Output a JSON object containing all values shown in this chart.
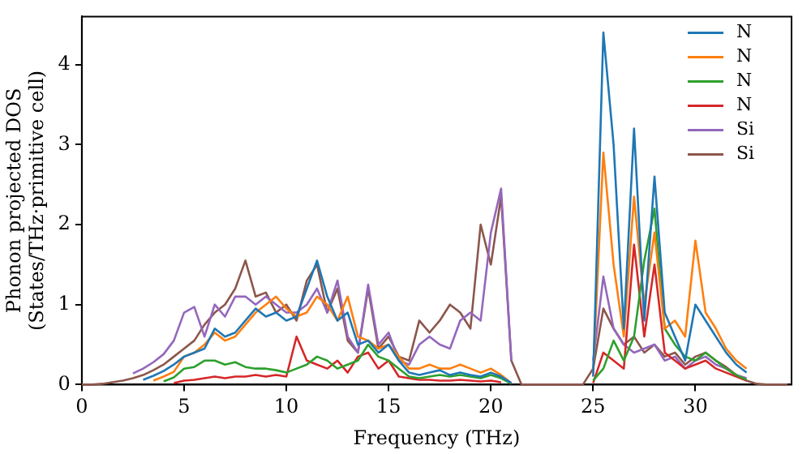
{
  "chart_data": {
    "type": "line",
    "xlabel": "Frequency (THz)",
    "ylabel": "Phonon projected DOS\n(States/THz·primitive cell)",
    "x": [
      0,
      0.5,
      1,
      1.5,
      2,
      2.5,
      3,
      3.5,
      4,
      4.5,
      5,
      5.5,
      6,
      6.5,
      7,
      7.5,
      8,
      8.5,
      9,
      9.5,
      10,
      10.5,
      11,
      11.5,
      12,
      12.5,
      13,
      13.5,
      14,
      14.5,
      15,
      15.5,
      16,
      16.5,
      17,
      17.5,
      18,
      18.5,
      19,
      19.5,
      20,
      20.5,
      21,
      21.5,
      22,
      22.5,
      23,
      23.5,
      24,
      24.5,
      25,
      25.5,
      26,
      26.5,
      27,
      27.5,
      28,
      28.5,
      29,
      29.5,
      30,
      30.5,
      31,
      31.5,
      32,
      32.5,
      33,
      33.5,
      34,
      34.5
    ],
    "xlim": [
      0,
      34.7
    ],
    "xticks": [
      0,
      5,
      10,
      15,
      20,
      25,
      30
    ],
    "ylim": [
      0,
      4.6
    ],
    "yticks": [
      0,
      1,
      2,
      3,
      4
    ],
    "grid": false,
    "legend": "top right",
    "marker": "none",
    "line_style": "solid",
    "series": [
      {
        "name": "N",
        "color": "#1f77b4",
        "values": [
          null,
          null,
          null,
          null,
          null,
          null,
          0.06,
          0.11,
          0.17,
          0.25,
          0.35,
          0.4,
          0.45,
          0.7,
          0.6,
          0.65,
          0.8,
          0.95,
          0.85,
          0.9,
          0.8,
          0.85,
          1.2,
          1.55,
          1.1,
          0.8,
          0.9,
          0.5,
          0.55,
          0.4,
          0.5,
          0.3,
          0.15,
          0.12,
          0.15,
          0.18,
          0.12,
          0.15,
          0.12,
          0.1,
          0.15,
          0.1,
          0.02,
          null,
          null,
          null,
          null,
          null,
          null,
          null,
          0.1,
          4.4,
          3.0,
          0.7,
          3.2,
          0.8,
          2.6,
          0.9,
          0.6,
          0.3,
          1.0,
          0.8,
          0.6,
          0.4,
          0.25,
          0.15,
          null,
          null,
          null,
          null
        ]
      },
      {
        "name": "N",
        "color": "#ff7f0e",
        "values": [
          null,
          null,
          null,
          null,
          null,
          null,
          null,
          0.05,
          0.1,
          0.16,
          0.35,
          0.4,
          0.5,
          0.65,
          0.55,
          0.6,
          0.75,
          0.9,
          1.0,
          1.1,
          0.95,
          0.85,
          0.9,
          1.1,
          1.0,
          0.8,
          1.1,
          0.6,
          0.55,
          0.45,
          0.5,
          0.35,
          0.2,
          0.2,
          0.25,
          0.2,
          0.2,
          0.25,
          0.2,
          0.15,
          0.2,
          0.12,
          0.02,
          null,
          null,
          null,
          null,
          null,
          null,
          null,
          0.15,
          2.9,
          1.5,
          0.6,
          2.35,
          1.0,
          1.9,
          0.7,
          0.8,
          0.6,
          1.8,
          0.9,
          0.7,
          0.45,
          0.3,
          0.2,
          null,
          null,
          null,
          null
        ]
      },
      {
        "name": "N",
        "color": "#2ca02c",
        "values": [
          null,
          null,
          null,
          null,
          null,
          null,
          null,
          null,
          0.04,
          0.09,
          0.2,
          0.22,
          0.3,
          0.3,
          0.25,
          0.28,
          0.22,
          0.2,
          0.2,
          0.18,
          0.15,
          0.2,
          0.25,
          0.35,
          0.3,
          0.2,
          0.25,
          0.3,
          0.5,
          0.35,
          0.3,
          0.2,
          0.1,
          0.08,
          0.1,
          0.12,
          0.1,
          0.12,
          0.1,
          0.08,
          0.12,
          0.08,
          0.01,
          null,
          null,
          null,
          null,
          null,
          null,
          null,
          0.05,
          0.2,
          0.55,
          0.3,
          0.6,
          1.55,
          2.2,
          0.7,
          0.5,
          0.35,
          0.3,
          0.4,
          0.3,
          0.2,
          0.12,
          0.06,
          null,
          null,
          null,
          null
        ]
      },
      {
        "name": "N",
        "color": "#d62728",
        "values": [
          null,
          null,
          null,
          null,
          null,
          null,
          null,
          null,
          null,
          0.02,
          0.05,
          0.06,
          0.08,
          0.1,
          0.08,
          0.1,
          0.1,
          0.12,
          0.1,
          0.12,
          0.1,
          0.6,
          0.3,
          0.25,
          0.2,
          0.3,
          0.15,
          0.35,
          0.4,
          0.2,
          0.3,
          0.1,
          0.08,
          0.06,
          0.06,
          0.05,
          0.05,
          0.06,
          0.05,
          0.04,
          0.05,
          0.03,
          null,
          null,
          null,
          null,
          null,
          null,
          null,
          null,
          0.02,
          0.4,
          0.3,
          0.2,
          1.75,
          0.6,
          1.5,
          0.4,
          0.3,
          0.2,
          0.25,
          0.3,
          0.2,
          0.15,
          0.1,
          0.05,
          null,
          null,
          null,
          null
        ]
      },
      {
        "name": "Si",
        "color": "#9467bd",
        "values": [
          null,
          null,
          null,
          null,
          null,
          0.14,
          0.2,
          0.28,
          0.38,
          0.55,
          0.9,
          0.97,
          0.6,
          1.0,
          0.85,
          1.1,
          1.1,
          1.0,
          1.1,
          1.0,
          0.9,
          0.9,
          1.0,
          1.2,
          0.9,
          1.3,
          0.6,
          0.4,
          1.25,
          0.5,
          0.65,
          0.3,
          0.25,
          0.5,
          0.6,
          0.5,
          0.45,
          0.8,
          0.9,
          0.8,
          1.9,
          2.45,
          0.3,
          null,
          null,
          null,
          null,
          null,
          null,
          null,
          0.3,
          1.35,
          0.7,
          0.5,
          0.4,
          0.45,
          0.5,
          0.3,
          0.35,
          0.2,
          0.3,
          0.35,
          0.25,
          0.2,
          0.12,
          0.08,
          null,
          null,
          null,
          null
        ]
      },
      {
        "name": "Si",
        "color": "#8c564b",
        "values": [
          0,
          0,
          0.01,
          0.03,
          0.05,
          0.08,
          0.12,
          0.18,
          0.25,
          0.35,
          0.45,
          0.55,
          0.75,
          0.9,
          1.0,
          1.2,
          1.55,
          1.1,
          1.15,
          0.9,
          1.0,
          0.8,
          1.3,
          1.5,
          0.9,
          1.2,
          0.55,
          0.4,
          1.2,
          0.45,
          0.6,
          0.35,
          0.3,
          0.8,
          0.65,
          0.8,
          1.0,
          0.9,
          0.7,
          2.0,
          1.5,
          2.35,
          0.3,
          0,
          0,
          0,
          0,
          0,
          0,
          0,
          0.2,
          0.95,
          0.7,
          0.5,
          0.6,
          0.4,
          0.5,
          0.35,
          0.4,
          0.25,
          0.35,
          0.4,
          0.3,
          0.22,
          0.12,
          0.05,
          0.01,
          0,
          0,
          0
        ]
      }
    ]
  }
}
